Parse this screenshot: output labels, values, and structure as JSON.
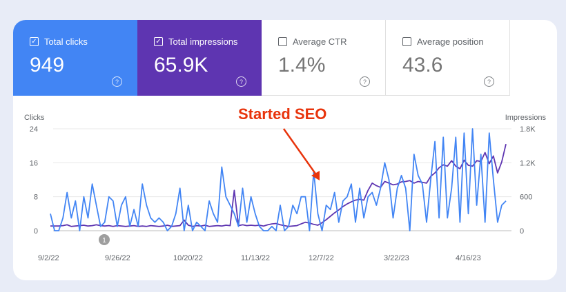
{
  "metrics": [
    {
      "label": "Total clicks",
      "value": "949",
      "checked": true,
      "color": "#4285f4"
    },
    {
      "label": "Total impressions",
      "value": "65.9K",
      "checked": true,
      "color": "#5e35b1"
    },
    {
      "label": "Average CTR",
      "value": "1.4%",
      "checked": false,
      "color": "#ffffff"
    },
    {
      "label": "Average position",
      "value": "43.6",
      "checked": false,
      "color": "#ffffff"
    }
  ],
  "annotation": {
    "text": "Started SEO",
    "color": "#e8340c"
  },
  "marker": {
    "label": "1"
  },
  "chart_data": {
    "type": "line",
    "left_axis": {
      "label": "Clicks",
      "ticks": [
        "24",
        "16",
        "8",
        "0"
      ],
      "ylim": [
        0,
        24
      ]
    },
    "right_axis": {
      "label": "Impressions",
      "ticks": [
        "1.8K",
        "1.2K",
        "600",
        "0"
      ],
      "ylim": [
        0,
        1800
      ]
    },
    "x_tick_labels": [
      "9/2/22",
      "9/26/22",
      "10/20/22",
      "11/13/22",
      "12/7/22",
      "3/22/23",
      "4/16/23"
    ],
    "grid": true,
    "series": [
      {
        "name": "Clicks",
        "axis": "left",
        "color": "#4285f4",
        "values": [
          4,
          0,
          0,
          3,
          9,
          3,
          7,
          0,
          8,
          3,
          11,
          6,
          1,
          2,
          8,
          7,
          1,
          6,
          8,
          1,
          5,
          1,
          11,
          6,
          3,
          2,
          3,
          2,
          0,
          1,
          4,
          10,
          0,
          6,
          0,
          2,
          1,
          0,
          7,
          4,
          2,
          15,
          8,
          6,
          4,
          1,
          10,
          2,
          8,
          4,
          1,
          0,
          0,
          1,
          0,
          6,
          0,
          1,
          6,
          4,
          8,
          8,
          0,
          14,
          4,
          0,
          6,
          5,
          9,
          2,
          7,
          8,
          11,
          2,
          10,
          3,
          8,
          9,
          6,
          10,
          16,
          12,
          3,
          10,
          13,
          10,
          0,
          18,
          13,
          11,
          2,
          12,
          21,
          3,
          22,
          3,
          10,
          22,
          2,
          23,
          4,
          24,
          6,
          18,
          2,
          23,
          12,
          2,
          6,
          7
        ]
      },
      {
        "name": "Impressions",
        "axis": "left",
        "color": "#5e35b1",
        "values": [
          1.1,
          1.1,
          1.1,
          1.2,
          1.4,
          1.0,
          1.1,
          1.2,
          1.3,
          1.1,
          1.2,
          1.4,
          1.2,
          1.1,
          1.2,
          1.0,
          1.2,
          1.1,
          1.0,
          1.1,
          1.2,
          1.0,
          1.1,
          1.0,
          1.2,
          1.1,
          1.0,
          1.1,
          1.3,
          1.0,
          1.1,
          1.2,
          2.5,
          1.3,
          1.0,
          1.2,
          1.1,
          1.3,
          1.0,
          1.1,
          1.2,
          1.1,
          1.3,
          1.2,
          9.5,
          1.2,
          1.4,
          1.2,
          1.3,
          1.2,
          1.3,
          1.1,
          1.4,
          1.6,
          1.7,
          1.4,
          1.2,
          1.0,
          1.1,
          1.2,
          1.6,
          2.0,
          1.8,
          1.5,
          1.3,
          1.9,
          2.6,
          3.4,
          4.2,
          4.9,
          5.7,
          6.3,
          6.8,
          7.2,
          7.4,
          7.2,
          9.5,
          11.2,
          10.6,
          10.2,
          11.6,
          11.2,
          10.8,
          11.0,
          11.5,
          11.6,
          11.8,
          11.2,
          11.6,
          11.4,
          11.2,
          12.8,
          13.6,
          14.8,
          15.5,
          15.2,
          16.5,
          15.2,
          14.6,
          16.6,
          15.4,
          15.2,
          16.5,
          16.3,
          18.4,
          15.8,
          17.6,
          13.6,
          16.2,
          20.4
        ]
      }
    ]
  }
}
